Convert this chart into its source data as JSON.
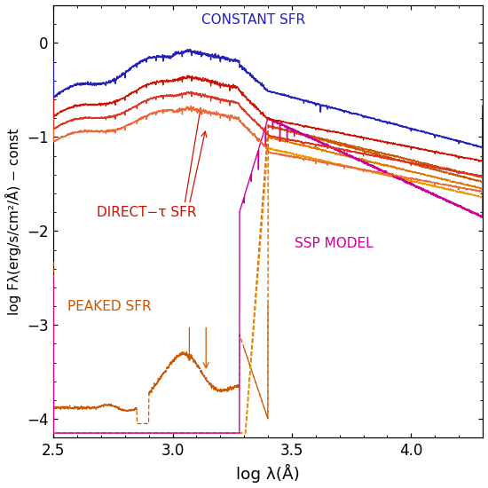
{
  "xlim": [
    2.5,
    4.3
  ],
  "ylim": [
    -4.2,
    0.4
  ],
  "xlabel": "log λ(Å)",
  "ylabel": "log Fλ(erg/s/cm²/Å) − const",
  "xticks": [
    2.5,
    3.0,
    3.5,
    4.0
  ],
  "yticks": [
    -4,
    -3,
    -2,
    -1,
    0
  ],
  "label_constant": "CONSTANT SFR",
  "label_direct": "DIRECT−τ SFR",
  "label_ssp": "SSP MODEL",
  "label_peaked": "PEAKED SFR",
  "color_blue": "#2222bb",
  "color_red1": "#cc1100",
  "color_red2": "#dd3322",
  "color_red3": "#ee6633",
  "color_magenta": "#cc0099",
  "color_orange1": "#cc5500",
  "color_orange2": "#dd7700",
  "color_orange3": "#ee9900",
  "background": "#ffffff"
}
